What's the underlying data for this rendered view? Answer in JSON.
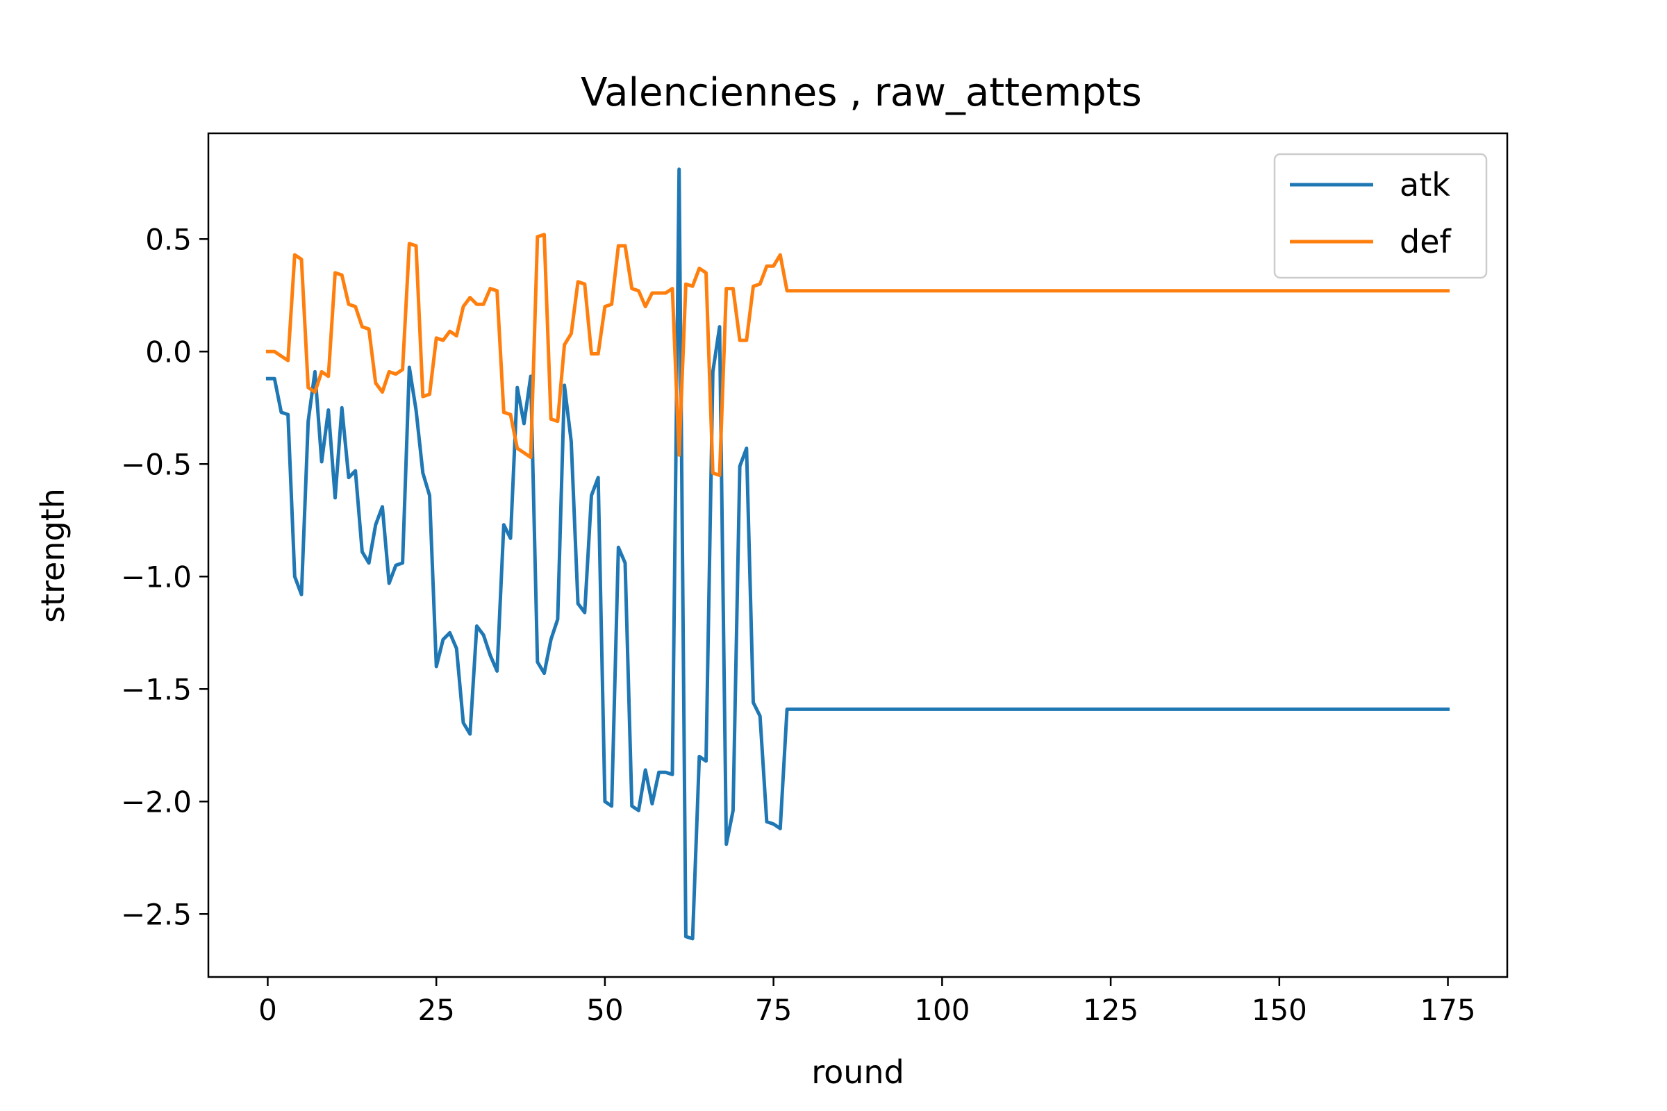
{
  "chart_data": {
    "type": "line",
    "title": "Valenciennes , raw_attempts",
    "xlabel": "round",
    "ylabel": "strength",
    "xlim": [
      -8.8,
      183.8
    ],
    "ylim": [
      -2.78,
      0.97
    ],
    "xticks": [
      0,
      25,
      50,
      75,
      100,
      125,
      150,
      175
    ],
    "xtick_labels": [
      "0",
      "25",
      "50",
      "75",
      "100",
      "125",
      "150",
      "175"
    ],
    "yticks": [
      0.5,
      0.0,
      -0.5,
      -1.0,
      -1.5,
      -2.0,
      -2.5
    ],
    "ytick_labels": [
      "0.5",
      "0.0",
      "−0.5",
      "−1.0",
      "−1.5",
      "−2.0",
      "−2.5"
    ],
    "grid": false,
    "legend_position": "top-right",
    "series": [
      {
        "name": "atk",
        "color": "#1f77b4",
        "x": [
          0,
          1,
          2,
          3,
          4,
          5,
          6,
          7,
          8,
          9,
          10,
          11,
          12,
          13,
          14,
          15,
          16,
          17,
          18,
          19,
          20,
          21,
          22,
          23,
          24,
          25,
          26,
          27,
          28,
          29,
          30,
          31,
          32,
          33,
          34,
          35,
          36,
          37,
          38,
          39,
          40,
          41,
          42,
          43,
          44,
          45,
          46,
          47,
          48,
          49,
          50,
          51,
          52,
          53,
          54,
          55,
          56,
          57,
          58,
          59,
          60,
          61,
          62,
          63,
          64,
          65,
          66,
          67,
          68,
          69,
          70,
          71,
          72,
          73,
          74,
          75,
          76,
          77,
          175
        ],
        "values": [
          -0.12,
          -0.12,
          -0.27,
          -0.28,
          -1.0,
          -1.08,
          -0.31,
          -0.09,
          -0.49,
          -0.26,
          -0.65,
          -0.25,
          -0.56,
          -0.53,
          -0.89,
          -0.94,
          -0.77,
          -0.69,
          -1.03,
          -0.95,
          -0.94,
          -0.07,
          -0.26,
          -0.54,
          -0.64,
          -1.4,
          -1.28,
          -1.25,
          -1.32,
          -1.65,
          -1.7,
          -1.22,
          -1.26,
          -1.35,
          -1.42,
          -0.77,
          -0.83,
          -0.16,
          -0.32,
          -0.11,
          -1.38,
          -1.43,
          -1.28,
          -1.19,
          -0.15,
          -0.4,
          -1.12,
          -1.16,
          -0.64,
          -0.56,
          -2.0,
          -2.02,
          -0.87,
          -0.94,
          -2.02,
          -2.04,
          -1.86,
          -2.01,
          -1.87,
          -1.87,
          -1.88,
          0.81,
          -2.6,
          -2.61,
          -1.8,
          -1.82,
          -0.09,
          0.11,
          -2.19,
          -2.04,
          -0.51,
          -0.43,
          -1.56,
          -1.62,
          -2.09,
          -2.1,
          -2.12,
          -1.59,
          -1.59
        ]
      },
      {
        "name": "def",
        "color": "#ff7f0e",
        "x": [
          0,
          1,
          2,
          3,
          4,
          5,
          6,
          7,
          8,
          9,
          10,
          11,
          12,
          13,
          14,
          15,
          16,
          17,
          18,
          19,
          20,
          21,
          22,
          23,
          24,
          25,
          26,
          27,
          28,
          29,
          30,
          31,
          32,
          33,
          34,
          35,
          36,
          37,
          38,
          39,
          40,
          41,
          42,
          43,
          44,
          45,
          46,
          47,
          48,
          49,
          50,
          51,
          52,
          53,
          54,
          55,
          56,
          57,
          58,
          59,
          60,
          61,
          62,
          63,
          64,
          65,
          66,
          67,
          68,
          69,
          70,
          71,
          72,
          73,
          74,
          75,
          76,
          77,
          175
        ],
        "values": [
          0.0,
          0.0,
          -0.02,
          -0.04,
          0.43,
          0.41,
          -0.16,
          -0.18,
          -0.09,
          -0.11,
          0.35,
          0.34,
          0.21,
          0.2,
          0.11,
          0.1,
          -0.14,
          -0.18,
          -0.09,
          -0.1,
          -0.08,
          0.48,
          0.47,
          -0.2,
          -0.19,
          0.06,
          0.05,
          0.09,
          0.07,
          0.2,
          0.24,
          0.21,
          0.21,
          0.28,
          0.27,
          -0.27,
          -0.28,
          -0.43,
          -0.45,
          -0.47,
          0.51,
          0.52,
          -0.3,
          -0.31,
          0.03,
          0.08,
          0.31,
          0.3,
          -0.01,
          -0.01,
          0.2,
          0.21,
          0.47,
          0.47,
          0.28,
          0.27,
          0.2,
          0.26,
          0.26,
          0.26,
          0.28,
          -0.46,
          0.3,
          0.29,
          0.37,
          0.35,
          -0.54,
          -0.55,
          0.28,
          0.28,
          0.05,
          0.05,
          0.29,
          0.3,
          0.38,
          0.38,
          0.43,
          0.27,
          0.27
        ]
      }
    ]
  }
}
